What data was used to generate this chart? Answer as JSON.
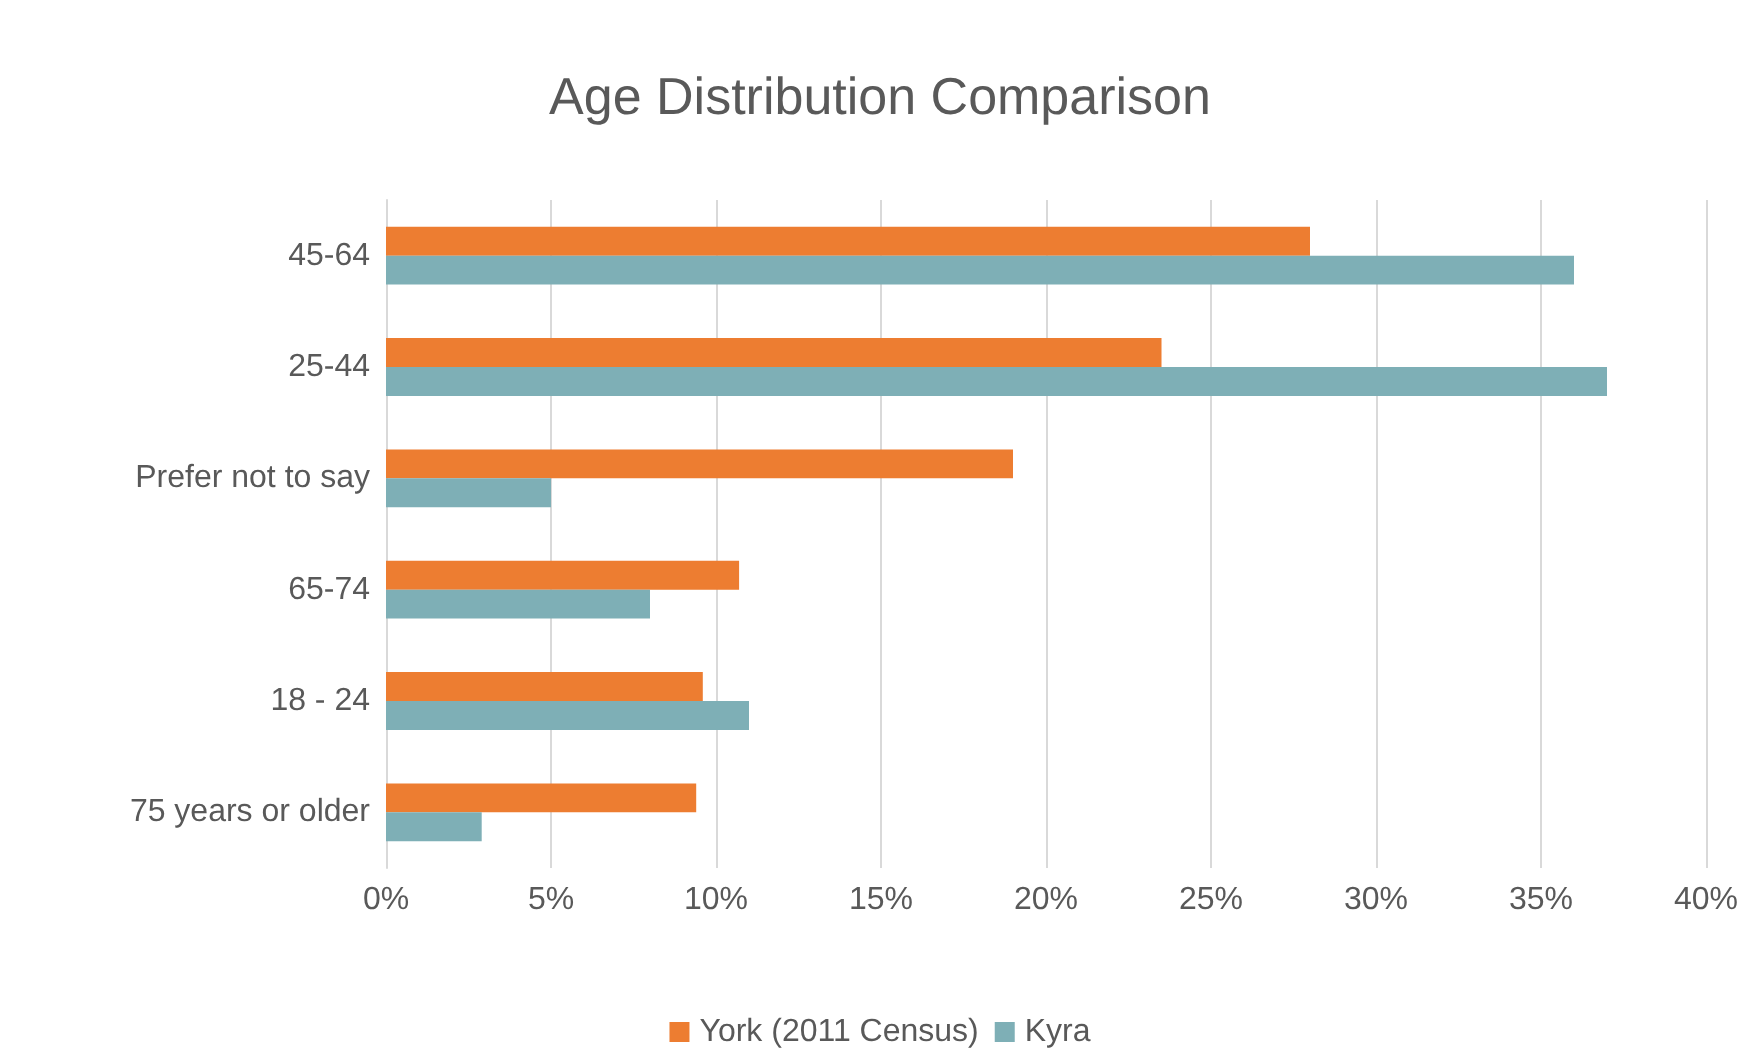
{
  "chart_data": {
    "type": "bar",
    "orientation": "horizontal",
    "title": "Age Distribution Comparison",
    "categories": [
      "45-64",
      "25-44",
      "Prefer not to say",
      "65-74",
      "18 - 24",
      "75 years or older"
    ],
    "series": [
      {
        "name": "York (2011 Census)",
        "color": "#ed7d31",
        "values": [
          28,
          23.5,
          19,
          10.7,
          9.6,
          9.4
        ]
      },
      {
        "name": "Kyra",
        "color": "#7eafb6",
        "values": [
          36,
          37,
          5,
          8,
          11,
          2.9
        ]
      }
    ],
    "xlim": [
      0,
      40
    ],
    "xticks": [
      {
        "value": 0,
        "label": "0%"
      },
      {
        "value": 5,
        "label": "5%"
      },
      {
        "value": 10,
        "label": "10%"
      },
      {
        "value": 15,
        "label": "15%"
      },
      {
        "value": 20,
        "label": "20%"
      },
      {
        "value": 25,
        "label": "25%"
      },
      {
        "value": 30,
        "label": "30%"
      },
      {
        "value": 35,
        "label": "35%"
      },
      {
        "value": 40,
        "label": "40%"
      }
    ],
    "grid": "x",
    "legend": "bottom"
  }
}
